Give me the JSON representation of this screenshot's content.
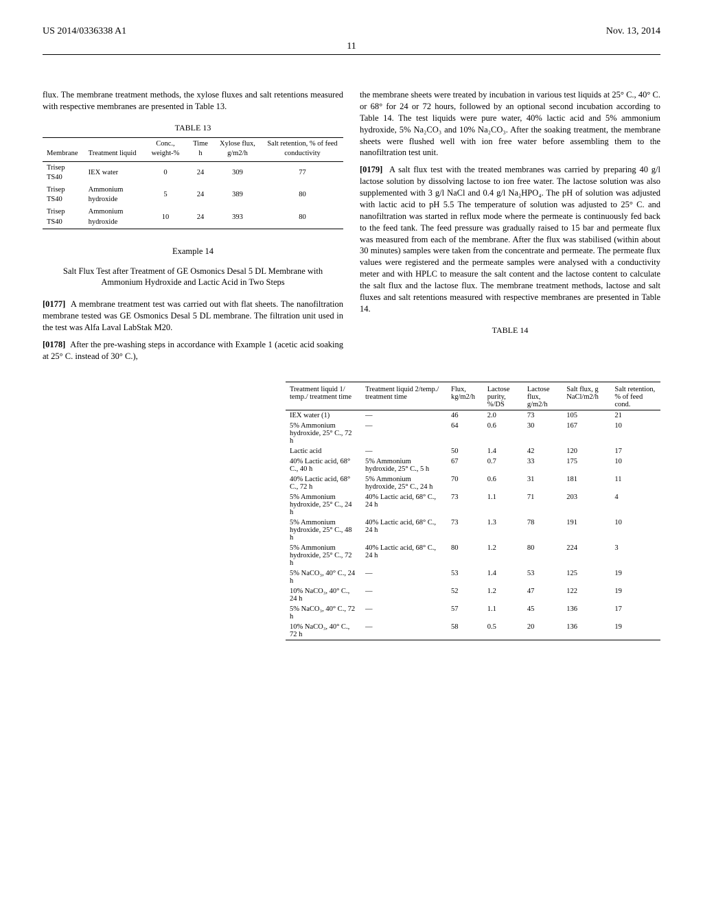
{
  "header": {
    "docNumber": "US 2014/0336338 A1",
    "date": "Nov. 13, 2014",
    "pageNumber": "11"
  },
  "col1": {
    "intro": "flux. The membrane treatment methods, the xylose fluxes and salt retentions measured with respective membranes are presented in Table 13.",
    "table13": {
      "title": "TABLE 13",
      "headers": [
        "Membrane",
        "Treatment liquid",
        "Conc., weight-%",
        "Time h",
        "Xylose flux, g/m2/h",
        "Salt retention, % of feed conductivity"
      ],
      "rows": [
        [
          "Trisep TS40",
          "IEX water",
          "0",
          "24",
          "309",
          "77"
        ],
        [
          "Trisep TS40",
          "Ammonium hydroxide",
          "5",
          "24",
          "389",
          "80"
        ],
        [
          "Trisep TS40",
          "Ammonium hydroxide",
          "10",
          "24",
          "393",
          "80"
        ]
      ]
    },
    "example": {
      "title": "Example 14",
      "subtitle": "Salt Flux Test after Treatment of GE Osmonics Desal 5 DL Membrane with Ammonium Hydroxide and Lactic Acid in Two Steps"
    },
    "p0177": "A membrane treatment test was carried out with flat sheets. The nanofiltration membrane tested was GE Osmonics Desal 5 DL membrane. The filtration unit used in the test was Alfa Laval LabStak M20.",
    "p0178": "After the pre-washing steps in accordance with Example 1 (acetic acid soaking at 25° C. instead of 30° C.),"
  },
  "col2": {
    "p1": "the membrane sheets were treated by incubation in various test liquids at 25° C., 40° C. or 68° for 24 or 72 hours, followed by an optional second incubation according to Table 14. The test liquids were pure water, 40% lactic acid and 5% ammonium hydroxide, 5% Na₂CO₃ and 10% Na₂CO₃. After the soaking treatment, the membrane sheets were flushed well with ion free water before assembling them to the nanofiltration test unit.",
    "p0179": "A salt flux test with the treated membranes was carried by preparing 40 g/l lactose solution by dissolving lactose to ion free water. The lactose solution was also supplemented with 3 g/l NaCl and 0.4 g/l Na₂HPO₄. The pH of solution was adjusted with lactic acid to pH 5.5 The temperature of solution was adjusted to 25° C. and nanofiltration was started in reflux mode where the permeate is continuously fed back to the feed tank. The feed pressure was gradually raised to 15 bar and permeate flux was measured from each of the membrane. After the flux was stabilised (within about 30 minutes) samples were taken from the concentrate and permeate. The permeate flux values were registered and the permeate samples were analysed with a conductivity meter and with HPLC to measure the salt content and the lactose content to calculate the salt flux and the lactose flux. The membrane treatment methods, lactose and salt fluxes and salt retentions measured with respective membranes are presented in Table 14."
  },
  "table14": {
    "title": "TABLE 14",
    "headers": {
      "c1": "Treatment liquid 1/ temp./ treatment time",
      "c2": "Treatment liquid 2/temp./ treatment time",
      "c3": "Flux, kg/m2/h",
      "c4": "Lactose purity, %/DS",
      "c5": "Lactose flux, g/m2/h",
      "c6": "Salt flux, g NaCl/m2/h",
      "c7": "Salt retention, % of feed cond."
    },
    "rows": [
      [
        "IEX water (1)",
        "—",
        "46",
        "2.0",
        "73",
        "105",
        "21"
      ],
      [
        "5% Ammonium hydroxide, 25° C., 72 h",
        "—",
        "64",
        "0.6",
        "30",
        "167",
        "10"
      ],
      [
        "Lactic acid",
        "—",
        "50",
        "1.4",
        "42",
        "120",
        "17"
      ],
      [
        "40% Lactic acid, 68° C., 40 h",
        "5% Ammonium hydroxide, 25° C., 5 h",
        "67",
        "0.7",
        "33",
        "175",
        "10"
      ],
      [
        "40% Lactic acid, 68° C., 72 h",
        "5% Ammonium hydroxide, 25° C., 24 h",
        "70",
        "0.6",
        "31",
        "181",
        "11"
      ],
      [
        "5% Ammonium hydroxide, 25° C., 24 h",
        "40% Lactic acid, 68° C., 24 h",
        "73",
        "1.1",
        "71",
        "203",
        "4"
      ],
      [
        "5% Ammonium hydroxide, 25° C., 48 h",
        "40% Lactic acid, 68° C., 24 h",
        "73",
        "1.3",
        "78",
        "191",
        "10"
      ],
      [
        "5% Ammonium hydroxide, 25° C., 72 h",
        "40% Lactic acid, 68° C., 24 h",
        "80",
        "1.2",
        "80",
        "224",
        "3"
      ],
      [
        "5% NaCO₃, 40° C., 24 h",
        "—",
        "53",
        "1.4",
        "53",
        "125",
        "19"
      ],
      [
        "10% NaCO₃, 40° C., 24 h",
        "—",
        "52",
        "1.2",
        "47",
        "122",
        "19"
      ],
      [
        "5% NaCO₃, 40° C., 72 h",
        "—",
        "57",
        "1.1",
        "45",
        "136",
        "17"
      ],
      [
        "10% NaCO₃, 40° C., 72 h",
        "—",
        "58",
        "0.5",
        "20",
        "136",
        "19"
      ]
    ]
  }
}
